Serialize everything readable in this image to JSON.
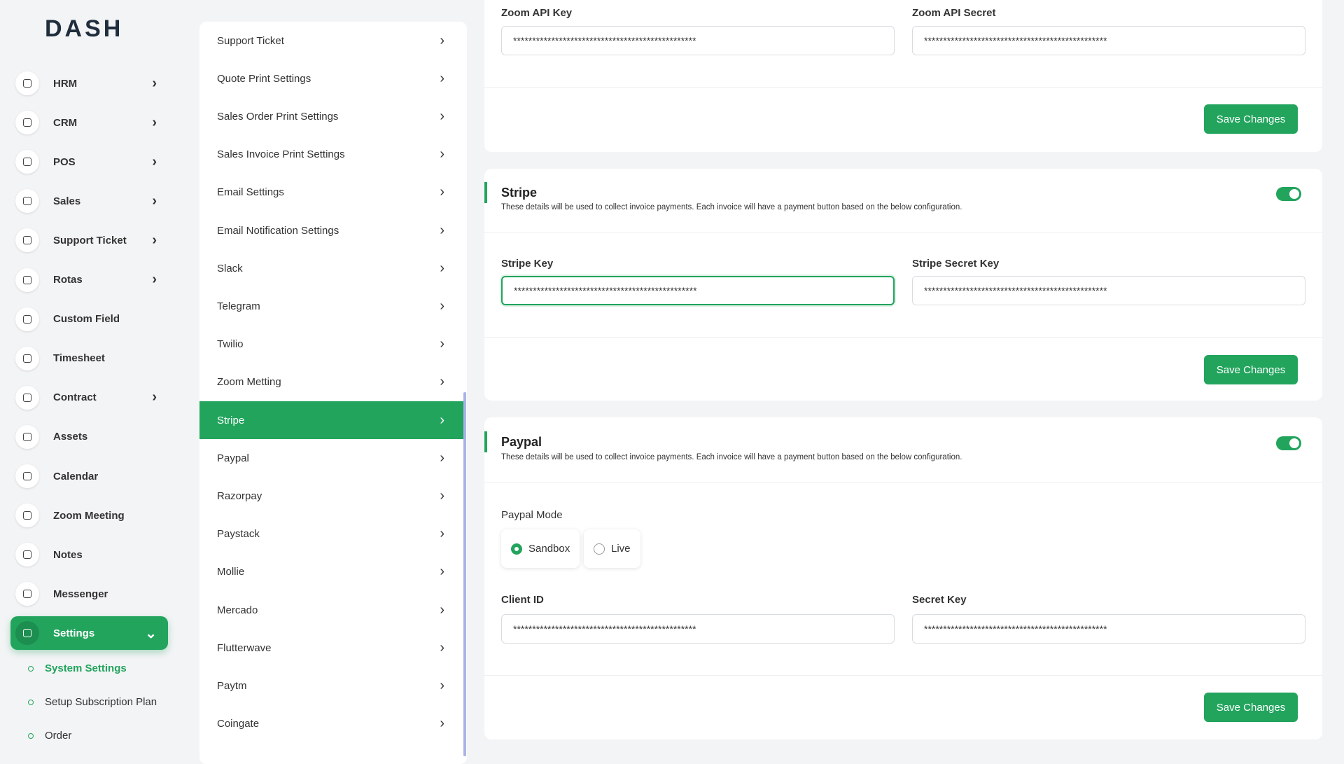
{
  "brand": "DASH",
  "sidebar": {
    "menu": [
      {
        "label": "HRM",
        "expandable": true
      },
      {
        "label": "CRM",
        "expandable": true
      },
      {
        "label": "POS",
        "expandable": true
      },
      {
        "label": "Sales",
        "expandable": true
      },
      {
        "label": "Support Ticket",
        "expandable": true
      },
      {
        "label": "Rotas",
        "expandable": true
      },
      {
        "label": "Custom Field",
        "expandable": false
      },
      {
        "label": "Timesheet",
        "expandable": false
      },
      {
        "label": "Contract",
        "expandable": true
      },
      {
        "label": "Assets",
        "expandable": false
      },
      {
        "label": "Calendar",
        "expandable": false
      },
      {
        "label": "Zoom Meeting",
        "expandable": false
      },
      {
        "label": "Notes",
        "expandable": false
      },
      {
        "label": "Messenger",
        "expandable": false
      },
      {
        "label": "Settings",
        "expandable": true,
        "active": true
      }
    ],
    "submenu": [
      {
        "label": "System Settings",
        "active": true
      },
      {
        "label": "Setup Subscription Plan"
      },
      {
        "label": "Order"
      }
    ]
  },
  "settings_nav": [
    {
      "label": "Support Ticket"
    },
    {
      "label": "Quote Print Settings"
    },
    {
      "label": "Sales Order Print Settings"
    },
    {
      "label": "Sales Invoice Print Settings"
    },
    {
      "label": "Email Settings"
    },
    {
      "label": "Email Notification Settings"
    },
    {
      "label": "Slack"
    },
    {
      "label": "Telegram"
    },
    {
      "label": "Twilio"
    },
    {
      "label": "Zoom Metting"
    },
    {
      "label": "Stripe",
      "active": true
    },
    {
      "label": "Paypal"
    },
    {
      "label": "Razorpay"
    },
    {
      "label": "Paystack"
    },
    {
      "label": "Mollie"
    },
    {
      "label": "Mercado"
    },
    {
      "label": "Flutterwave"
    },
    {
      "label": "Paytm"
    },
    {
      "label": "Coingate"
    }
  ],
  "zoom": {
    "api_key_label": "Zoom API Key",
    "api_key": "************************************************",
    "api_secret_label": "Zoom API Secret",
    "api_secret": "************************************************",
    "button": "Save Changes"
  },
  "stripe": {
    "title": "Stripe",
    "description": "These details will be used to collect invoice payments. Each invoice will have a payment button based on the below configuration.",
    "enabled": true,
    "key_label": "Stripe Key",
    "key": "************************************************",
    "secret_label": "Stripe Secret Key",
    "secret": "************************************************",
    "button": "Save Changes"
  },
  "paypal": {
    "title": "Paypal",
    "description": "These details will be used to collect invoice payments. Each invoice will have a payment button based on the below configuration.",
    "enabled": true,
    "mode_label": "Paypal Mode",
    "modes": [
      {
        "label": "Sandbox",
        "selected": true
      },
      {
        "label": "Live",
        "selected": false
      }
    ],
    "client_id_label": "Client ID",
    "client_id": "************************************************",
    "secret_label": "Secret Key",
    "secret": "************************************************",
    "button": "Save Changes"
  }
}
